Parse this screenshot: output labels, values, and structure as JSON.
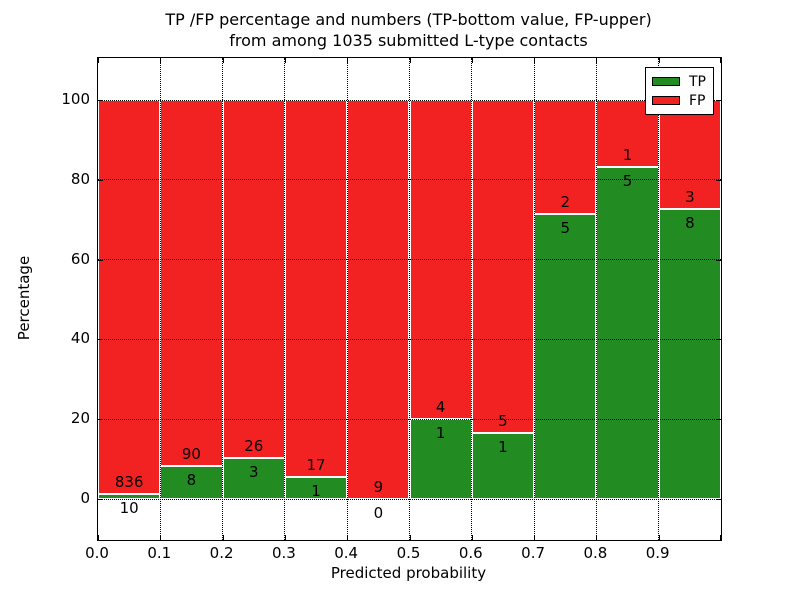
{
  "title": {
    "line1": "TP /FP percentage and numbers (TP-bottom value, FP-upper)",
    "line2": "from among 1035 submitted L-type contacts"
  },
  "axes": {
    "xlabel": "Predicted probability",
    "ylabel": "Percentage",
    "xtick_labels": [
      "0.0",
      "0.1",
      "0.2",
      "0.3",
      "0.4",
      "0.5",
      "0.6",
      "0.7",
      "0.8",
      "0.9"
    ],
    "ytick_labels": [
      "0",
      "20",
      "40",
      "60",
      "80",
      "100"
    ],
    "ytick_values": [
      0,
      20,
      40,
      60,
      80,
      100
    ]
  },
  "legend": {
    "items": [
      {
        "label": "TP",
        "color": "#228B22"
      },
      {
        "label": "FP",
        "color": "#F22222"
      }
    ]
  },
  "chart_data": {
    "type": "bar",
    "stacked": true,
    "normalized_to_percent": 100,
    "title": "TP /FP percentage and numbers (TP-bottom value, FP-upper) from among 1035 submitted L-type contacts",
    "xlabel": "Predicted probability",
    "ylabel": "Percentage",
    "xlim": [
      0.0,
      1.0
    ],
    "ylim": [
      -10.3,
      110.5
    ],
    "grid": "dotted",
    "legend_position": "upper right",
    "total_contacts": 1035,
    "bin_width": 0.1,
    "bin_starts": [
      0.0,
      0.1,
      0.2,
      0.3,
      0.4,
      0.5,
      0.6,
      0.7,
      0.8,
      0.9
    ],
    "series": [
      {
        "name": "TP",
        "color": "#228B22",
        "counts": [
          10,
          8,
          3,
          1,
          0,
          1,
          1,
          5,
          5,
          8
        ],
        "percentages": [
          1.18,
          8.16,
          10.34,
          5.56,
          0.0,
          20.0,
          16.67,
          71.43,
          83.33,
          72.73
        ]
      },
      {
        "name": "FP",
        "color": "#F22222",
        "counts": [
          836,
          90,
          26,
          17,
          9,
          4,
          5,
          2,
          1,
          3
        ],
        "percentages": [
          98.82,
          91.84,
          89.66,
          94.44,
          100.0,
          80.0,
          83.33,
          28.57,
          16.67,
          27.27
        ]
      }
    ]
  }
}
